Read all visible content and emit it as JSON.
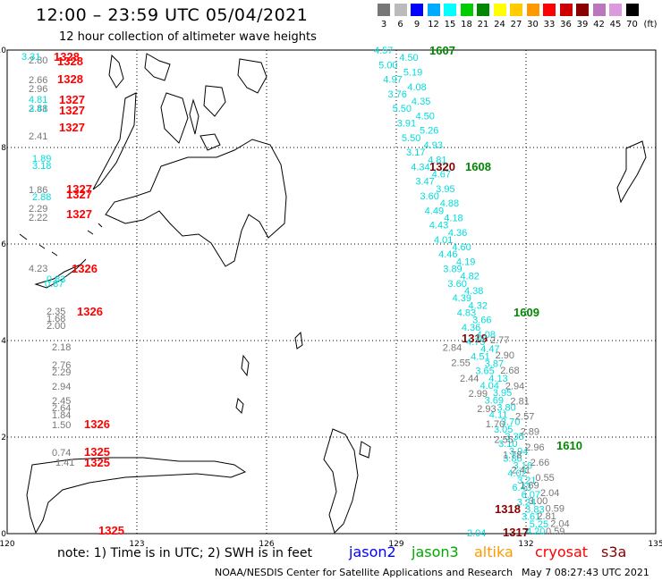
{
  "header": {
    "title": "12:00 – 23:59 UTC 05/04/2021",
    "subtitle": "12 hour collection of altimeter wave heights"
  },
  "legend": {
    "unit": "(ft)",
    "bins": [
      {
        "label": "3",
        "color": "#777777"
      },
      {
        "label": "6",
        "color": "#bbbbbb"
      },
      {
        "label": "9",
        "color": "#0000ff"
      },
      {
        "label": "12",
        "color": "#00aaff"
      },
      {
        "label": "15",
        "color": "#00ffff"
      },
      {
        "label": "18",
        "color": "#00cc00"
      },
      {
        "label": "21",
        "color": "#008800"
      },
      {
        "label": "24",
        "color": "#ffff00"
      },
      {
        "label": "27",
        "color": "#ffcc00"
      },
      {
        "label": "30",
        "color": "#ff9900"
      },
      {
        "label": "33",
        "color": "#ff0000"
      },
      {
        "label": "36",
        "color": "#cc0000"
      },
      {
        "label": "39",
        "color": "#880000"
      },
      {
        "label": "42",
        "color": "#bb77bb"
      },
      {
        "label": "45",
        "color": "#dd99dd"
      },
      {
        "label": "70",
        "color": "#000000"
      }
    ]
  },
  "axes": {
    "lon_ticks": [
      "120",
      "123",
      "126",
      "129",
      "132",
      "135"
    ],
    "lat_ticks": [
      "0",
      "2",
      "4",
      "6",
      "8",
      "10"
    ]
  },
  "tracks": [
    {
      "id": "gray-west",
      "color": "#777777",
      "values": [
        "2.80",
        "2.66",
        "2.96",
        "2.88",
        "2.41",
        "1.86",
        "2.29",
        "2.22",
        "4.23",
        "2.35",
        "1.68",
        "2.00",
        "2.18",
        "2.76",
        "2.29",
        "2.94",
        "2.45",
        "2.64",
        "1.84",
        "1.50",
        "0.74",
        "1.41"
      ]
    },
    {
      "id": "cyan-west",
      "color": "#00dddd",
      "values": [
        "3.31",
        "3.41",
        "4.81",
        "3.18",
        "1.89",
        "2.88",
        "0.87",
        "0.83",
        "2.04"
      ]
    },
    {
      "id": "cyan-east-a",
      "color": "#00dddd",
      "values": [
        "4.57",
        "4.50",
        "5.00",
        "5.19",
        "4.97",
        "4.08",
        "3.76",
        "4.35",
        "5.50",
        "4.50",
        "3.91",
        "5.26",
        "5.50",
        "4.93",
        "3.17",
        "4.81",
        "4.34",
        "4.67",
        "3.47",
        "3.95",
        "3.60",
        "4.88",
        "4.49",
        "4.18",
        "4.43",
        "4.36",
        "4.01",
        "4.60",
        "4.46",
        "4.19",
        "3.89",
        "4.82",
        "3.60",
        "4.38",
        "4.39",
        "4.32",
        "4.83",
        "3.66",
        "4.36",
        "4.08",
        "4.75",
        "4.47",
        "4.51",
        "3.87",
        "3.65",
        "4.13",
        "4.04",
        "3.95",
        "3.69",
        "3.80",
        "4.11",
        "3.70",
        "3.05",
        "3.35",
        "3.10",
        "3.94",
        "3.86",
        "3.16",
        "4.02",
        "3.21",
        "6.43",
        "6.07",
        "3.24",
        "3.83",
        "3.61",
        "5.25",
        "4.20"
      ]
    },
    {
      "id": "gray-east",
      "color": "#777777",
      "values": [
        "2.77",
        "2.84",
        "2.90",
        "2.55",
        "2.68",
        "2.44",
        "2.94",
        "2.99",
        "2.81",
        "2.93",
        "2.57",
        "1.70",
        "2.89",
        "2.55",
        "2.96",
        "1.78",
        "2.66",
        "2.41",
        "0.55",
        "1.69",
        "2.04",
        "3.00",
        "0.59",
        "2.81",
        "2.04",
        "0.59"
      ]
    },
    {
      "id": "pass-labels",
      "color": "#ff0000",
      "values": [
        "1328",
        "1328",
        "1328",
        "1327",
        "1327",
        "1327",
        "1327",
        "1327",
        "1327",
        "1326",
        "1326",
        "1326",
        "1325",
        "1325"
      ]
    },
    {
      "id": "pass-labels-dark",
      "color": "#880000",
      "values": [
        "1320",
        "1319",
        "1318",
        "1317"
      ]
    },
    {
      "id": "pass-labels-green",
      "color": "#008800",
      "values": [
        "1607",
        "1608",
        "1609",
        "1610"
      ]
    }
  ],
  "footer": {
    "note": "note: 1) Time is in UTC; 2) SWH is in feet",
    "satellites": [
      {
        "name": "jason2",
        "color": "#0000ff"
      },
      {
        "name": "jason3",
        "color": "#00aa00"
      },
      {
        "name": "altika",
        "color": "#ff9900"
      },
      {
        "name": "cryosat",
        "color": "#ff0000"
      },
      {
        "name": "s3a",
        "color": "#880000"
      }
    ],
    "credit": "NOAA/NESDIS Center for Satellite Applications and Research",
    "timestamp": "May  7 08:27:43 UTC 2021"
  }
}
